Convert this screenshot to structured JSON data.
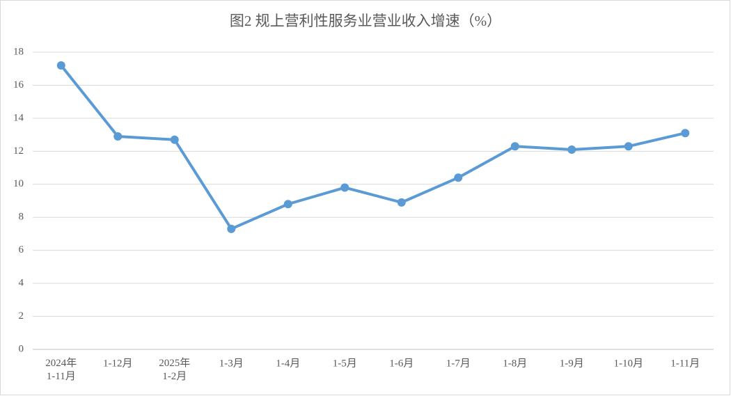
{
  "chart_data": {
    "type": "line",
    "title": "图2 规上营利性服务业营业收入增速（%）",
    "categories": [
      "2024年\n1-11月",
      "1-12月",
      "2025年\n1-2月",
      "1-3月",
      "1-4月",
      "1-5月",
      "1-6月",
      "1-7月",
      "1-8月",
      "1-9月",
      "1-10月",
      "1-11月"
    ],
    "values": [
      17.2,
      12.9,
      12.7,
      7.3,
      8.8,
      9.8,
      8.9,
      10.4,
      12.3,
      12.1,
      12.3,
      13.1
    ],
    "color": "#5b9bd5",
    "ylim": [
      0,
      18
    ],
    "yticks": [
      0,
      2,
      4,
      6,
      8,
      10,
      12,
      14,
      16,
      18
    ],
    "grid": true
  }
}
